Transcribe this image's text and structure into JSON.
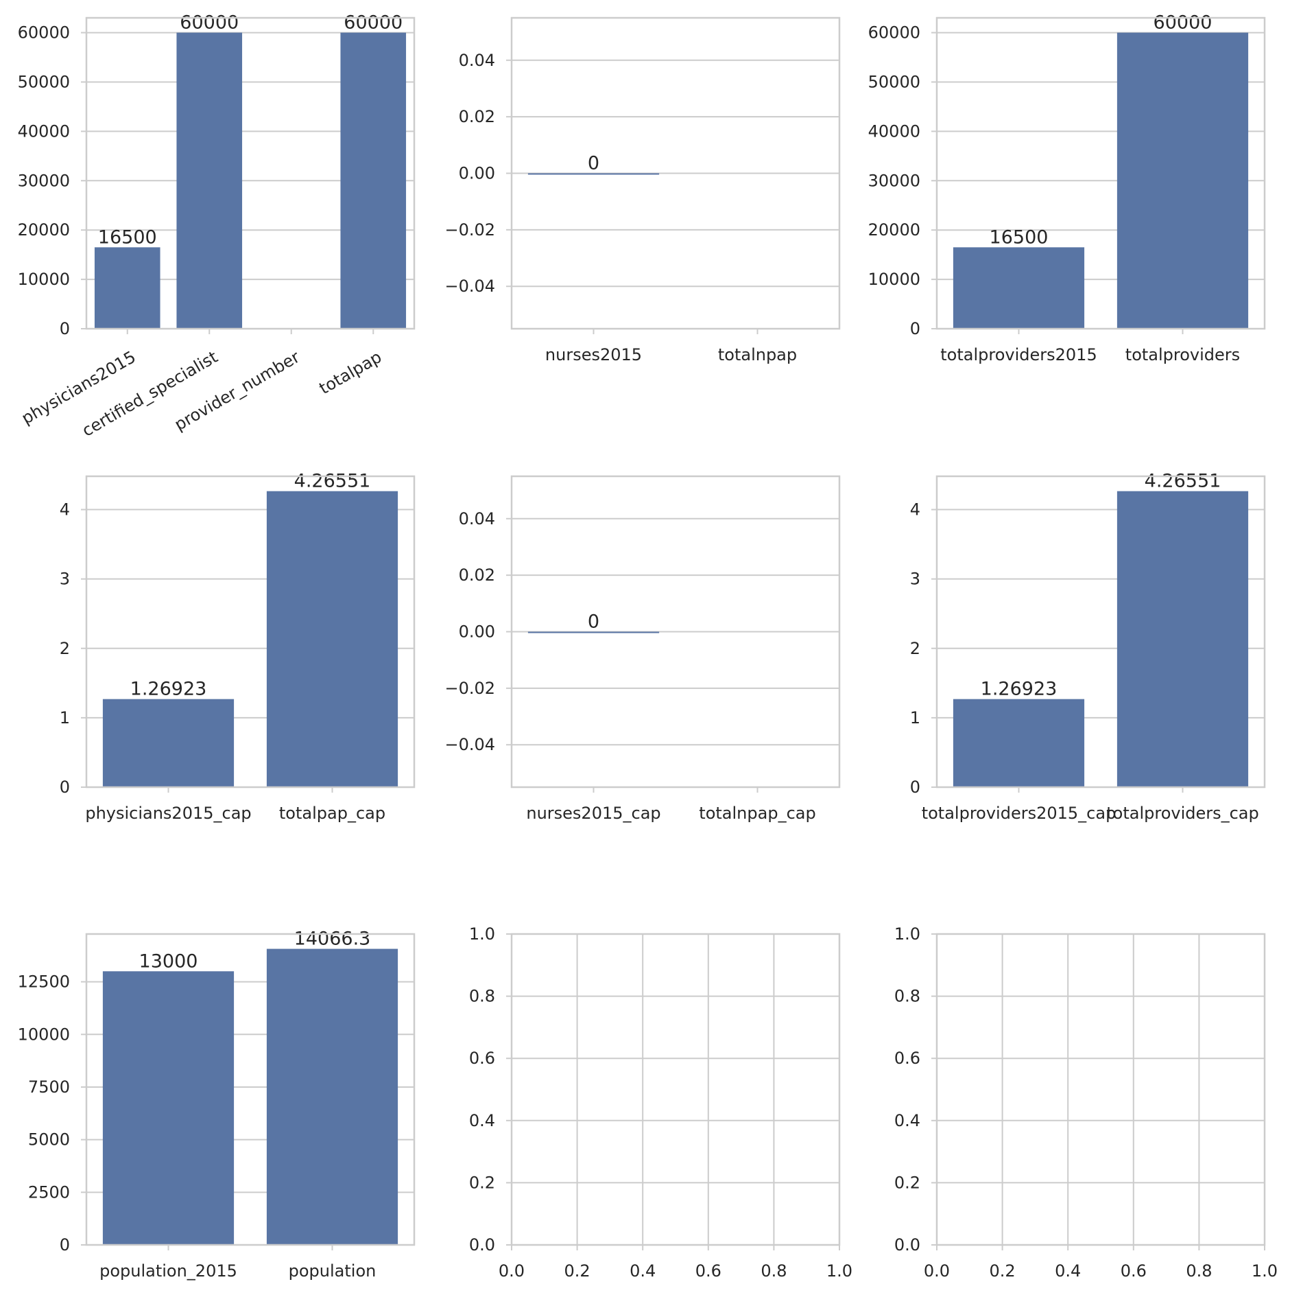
{
  "chart_data": [
    {
      "type": "bar",
      "categories": [
        "physicians2015",
        "certified_specialist",
        "provider_number",
        "totalpap"
      ],
      "values": [
        16500,
        60000,
        null,
        60000
      ],
      "bar_labels": [
        "16500",
        "60000",
        "",
        "60000"
      ],
      "ylim": [
        0,
        63000
      ],
      "yticks": [
        0,
        10000,
        20000,
        30000,
        40000,
        50000,
        60000
      ],
      "ytick_labels": [
        "0",
        "10000",
        "20000",
        "30000",
        "40000",
        "50000",
        "60000"
      ],
      "xtick_rotation": 30,
      "grid": "y",
      "bar_color": "#5975a4"
    },
    {
      "type": "bar",
      "categories": [
        "nurses2015",
        "totalnpap"
      ],
      "values": [
        0,
        null
      ],
      "bar_labels": [
        "0",
        ""
      ],
      "ylim": [
        -0.055,
        0.055
      ],
      "yticks": [
        -0.04,
        -0.02,
        0.0,
        0.02,
        0.04
      ],
      "ytick_labels": [
        "−0.04",
        "−0.02",
        "0.00",
        "0.02",
        "0.04"
      ],
      "grid": "y",
      "bar_color": "#5975a4"
    },
    {
      "type": "bar",
      "categories": [
        "totalproviders2015",
        "totalproviders"
      ],
      "values": [
        16500,
        60000
      ],
      "bar_labels": [
        "16500",
        "60000"
      ],
      "ylim": [
        0,
        63000
      ],
      "yticks": [
        0,
        10000,
        20000,
        30000,
        40000,
        50000,
        60000
      ],
      "ytick_labels": [
        "0",
        "10000",
        "20000",
        "30000",
        "40000",
        "50000",
        "60000"
      ],
      "grid": "y",
      "bar_color": "#5975a4"
    },
    {
      "type": "bar",
      "categories": [
        "physicians2015_cap",
        "totalpap_cap"
      ],
      "values": [
        1.26923,
        4.26551
      ],
      "bar_labels": [
        "1.26923",
        "4.26551"
      ],
      "ylim": [
        0,
        4.48
      ],
      "yticks": [
        0,
        1,
        2,
        3,
        4
      ],
      "ytick_labels": [
        "0",
        "1",
        "2",
        "3",
        "4"
      ],
      "grid": "y",
      "bar_color": "#5975a4"
    },
    {
      "type": "bar",
      "categories": [
        "nurses2015_cap",
        "totalnpap_cap"
      ],
      "values": [
        0,
        null
      ],
      "bar_labels": [
        "0",
        ""
      ],
      "ylim": [
        -0.055,
        0.055
      ],
      "yticks": [
        -0.04,
        -0.02,
        0.0,
        0.02,
        0.04
      ],
      "ytick_labels": [
        "−0.04",
        "−0.02",
        "0.00",
        "0.02",
        "0.04"
      ],
      "grid": "y",
      "bar_color": "#5975a4"
    },
    {
      "type": "bar",
      "categories": [
        "totalproviders2015_cap",
        "totalproviders_cap"
      ],
      "values": [
        1.26923,
        4.26551
      ],
      "bar_labels": [
        "1.26923",
        "4.26551"
      ],
      "ylim": [
        0,
        4.48
      ],
      "yticks": [
        0,
        1,
        2,
        3,
        4
      ],
      "ytick_labels": [
        "0",
        "1",
        "2",
        "3",
        "4"
      ],
      "grid": "y",
      "bar_color": "#5975a4"
    },
    {
      "type": "bar",
      "categories": [
        "population_2015",
        "population"
      ],
      "values": [
        13000,
        14066.3
      ],
      "bar_labels": [
        "13000",
        "14066.3"
      ],
      "ylim": [
        0,
        14770
      ],
      "yticks": [
        0,
        2500,
        5000,
        7500,
        10000,
        12500
      ],
      "ytick_labels": [
        "0",
        "2500",
        "5000",
        "7500",
        "10000",
        "12500"
      ],
      "grid": "y",
      "bar_color": "#5975a4"
    },
    {
      "type": "scatter",
      "empty": true,
      "xlim": [
        0,
        1
      ],
      "ylim": [
        0,
        1
      ],
      "xticks": [
        0,
        0.2,
        0.4,
        0.6,
        0.8,
        1.0
      ],
      "xtick_labels": [
        "0.0",
        "0.2",
        "0.4",
        "0.6",
        "0.8",
        "1.0"
      ],
      "yticks": [
        0,
        0.2,
        0.4,
        0.6,
        0.8,
        1.0
      ],
      "ytick_labels": [
        "0.0",
        "0.2",
        "0.4",
        "0.6",
        "0.8",
        "1.0"
      ],
      "grid": "both"
    },
    {
      "type": "scatter",
      "empty": true,
      "xlim": [
        0,
        1
      ],
      "ylim": [
        0,
        1
      ],
      "xticks": [
        0,
        0.2,
        0.4,
        0.6,
        0.8,
        1.0
      ],
      "xtick_labels": [
        "0.0",
        "0.2",
        "0.4",
        "0.6",
        "0.8",
        "1.0"
      ],
      "yticks": [
        0,
        0.2,
        0.4,
        0.6,
        0.8,
        1.0
      ],
      "ytick_labels": [
        "0.0",
        "0.2",
        "0.4",
        "0.6",
        "0.8",
        "1.0"
      ],
      "grid": "both"
    }
  ]
}
